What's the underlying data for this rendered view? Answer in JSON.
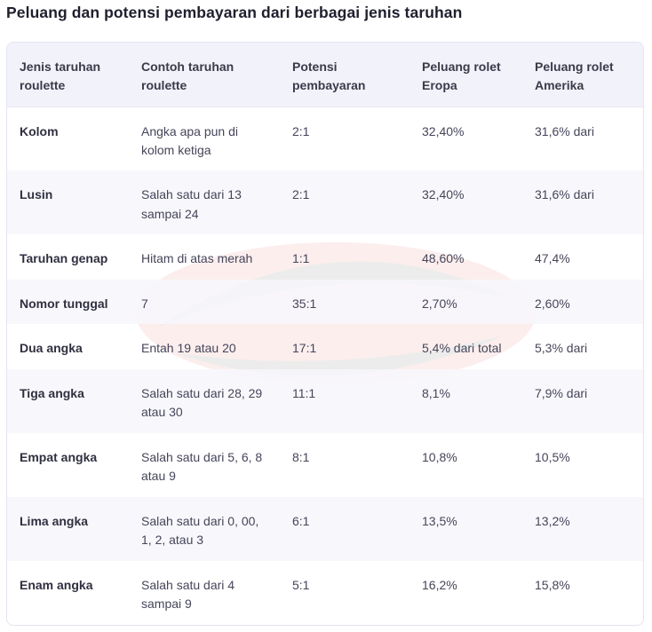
{
  "title": "Peluang dan potensi pembayaran dari berbagai jenis taruhan",
  "headers": [
    "Jenis taruhan roulette",
    "Contoh taruhan roulette",
    "Potensi pembayaran",
    "Peluang rolet Eropa",
    "Peluang rolet Amerika"
  ],
  "rows": [
    {
      "type": "Kolom",
      "example": "Angka apa pun di kolom ketiga",
      "payout": "2:1",
      "eu": "32,40%",
      "us": "31,6% dari"
    },
    {
      "type": "Lusin",
      "example": "Salah satu dari 13 sampai 24",
      "payout": "2:1",
      "eu": "32,40%",
      "us": "31,6% dari"
    },
    {
      "type": "Taruhan genap",
      "example": "Hitam di atas merah",
      "payout": "1:1",
      "eu": "48,60%",
      "us": "47,4%"
    },
    {
      "type": "Nomor tunggal",
      "example": "7",
      "payout": "35:1",
      "eu": "2,70%",
      "us": "2,60%"
    },
    {
      "type": "Dua angka",
      "example": "Entah 19 atau 20",
      "payout": "17:1",
      "eu": "5,4% dari total",
      "us": "5,3% dari"
    },
    {
      "type": "Tiga angka",
      "example": "Salah satu dari 28, 29 atau 30",
      "payout": "11:1",
      "eu": "8,1%",
      "us": "7,9% dari"
    },
    {
      "type": "Empat angka",
      "example": "Salah satu dari 5, 6, 8 atau 9",
      "payout": "8:1",
      "eu": "10,8%",
      "us": "10,5%"
    },
    {
      "type": "Lima angka",
      "example": "Salah satu dari 0, 00, 1, 2, atau 3",
      "payout": "6:1",
      "eu": "13,5%",
      "us": "13,2%"
    },
    {
      "type": "Enam angka",
      "example": "Salah satu dari 4 sampai 9",
      "payout": "5:1",
      "eu": "16,2%",
      "us": "15,8%"
    }
  ],
  "watermark_colors": {
    "primary": "#d9342b",
    "secondary": "#1a1a1a"
  }
}
